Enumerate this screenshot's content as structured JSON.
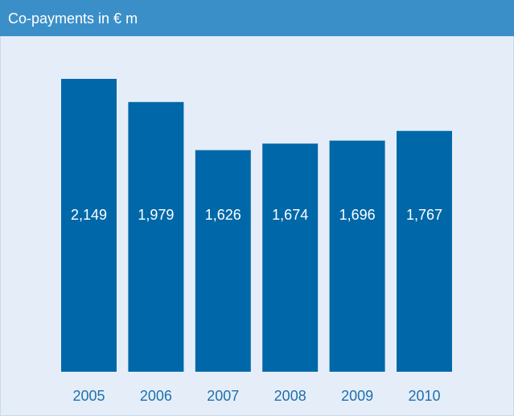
{
  "chart_data": {
    "type": "bar",
    "title": "Co-payments in € m",
    "categories": [
      "2005",
      "2006",
      "2007",
      "2008",
      "2009",
      "2010"
    ],
    "values": [
      2149,
      1979,
      1626,
      1674,
      1696,
      1767
    ],
    "value_labels": [
      "2,149",
      "1,979",
      "1,626",
      "1,674",
      "1,696",
      "1,767"
    ],
    "color": "#0068a9"
  }
}
